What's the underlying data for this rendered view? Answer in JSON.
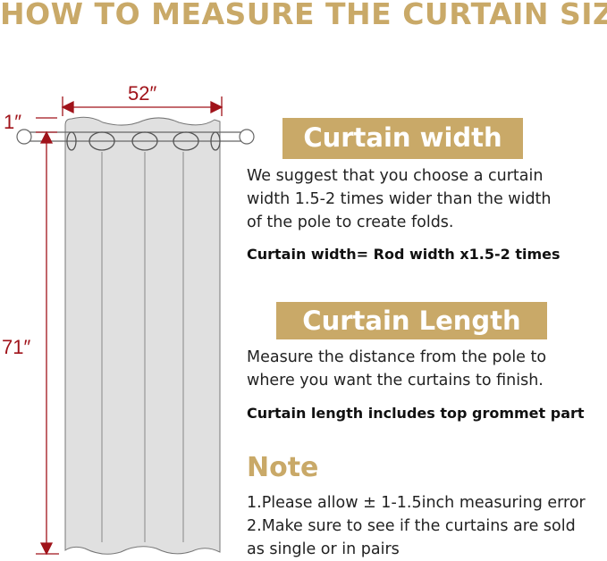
{
  "title": "HOW TO MEASURE THE CURTAIN SIZE",
  "diagram": {
    "width_label": "52″",
    "top_label": "1″",
    "length_label": "71″",
    "grommet_count": 5
  },
  "width_section": {
    "heading": "Curtain width",
    "lines": [
      "We suggest that you choose a curtain",
      "width 1.5-2 times wider than the width",
      "of the pole to create folds."
    ],
    "formula": "Curtain width= Rod width x1.5-2 times"
  },
  "length_section": {
    "heading": "Curtain Length",
    "lines": [
      "Measure the distance from the pole to",
      "where you want the curtains to finish."
    ],
    "formula": "Curtain length includes top grommet part"
  },
  "note": {
    "heading": "Note",
    "lines": [
      "1.Please allow ± 1-1.5inch measuring error",
      "2.Make sure to see if the curtains are sold",
      "as single or in pairs"
    ]
  },
  "colors": {
    "gold": "#c9a968",
    "dimension_red": "#a0131a",
    "curtain_gray": "#e0e0e0"
  }
}
